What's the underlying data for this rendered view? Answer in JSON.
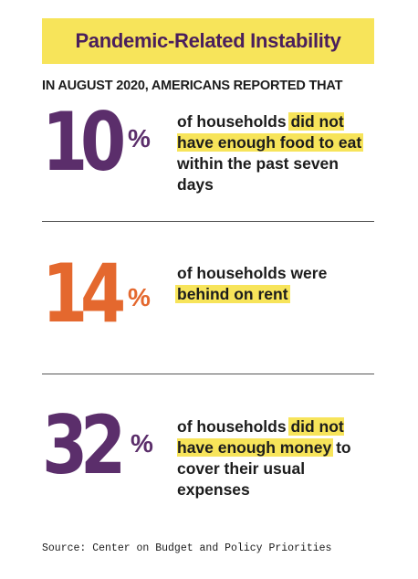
{
  "title": "Pandemic-Related Instability",
  "subtitle": "IN AUGUST 2020, AMERICANS REPORTED THAT",
  "stats": [
    {
      "number": "10",
      "percent": "%",
      "text_before": "of households ",
      "highlight": "did not have enough food to eat",
      "text_after": " within the past seven days",
      "color": "#5b2e6b"
    },
    {
      "number": "14",
      "percent": "%",
      "text_before": "of households were ",
      "highlight": "behind on rent",
      "text_after": "",
      "color": "#e4682e"
    },
    {
      "number": "32",
      "percent": "%",
      "text_before": "of households ",
      "highlight": "did not have enough money",
      "text_after": " to cover their usual expenses",
      "color": "#5b2e6b"
    }
  ],
  "source": "Source: Center on Budget and Policy Priorities",
  "colors": {
    "highlight": "#f7e45a",
    "title_text": "#4a1f5c",
    "purple": "#5b2e6b",
    "orange": "#e4682e"
  }
}
